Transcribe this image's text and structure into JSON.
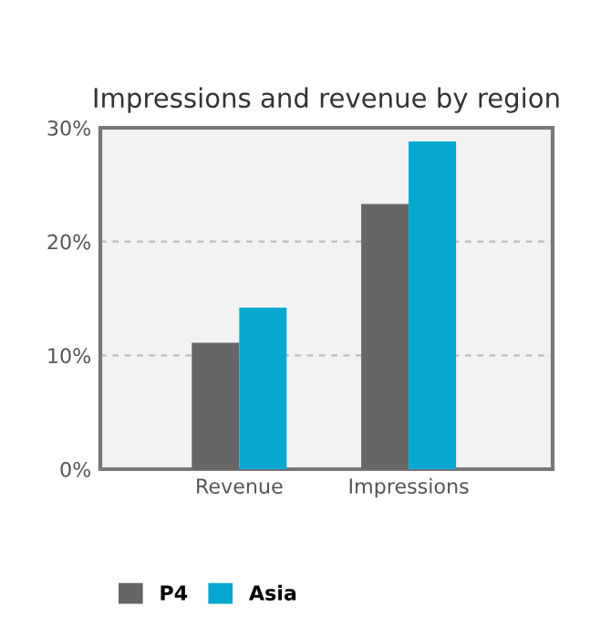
{
  "chart_data": {
    "type": "bar",
    "title": "Impressions and revenue by region",
    "categories": [
      "Revenue",
      "Impressions"
    ],
    "series": [
      {
        "name": "P4",
        "color": "#666666",
        "values": [
          11.1,
          23.3
        ]
      },
      {
        "name": "Asia",
        "color": "#06a7cf",
        "values": [
          14.2,
          28.8
        ]
      }
    ],
    "ylim": [
      0,
      30
    ],
    "yticks": [
      {
        "value": 0,
        "label": "0%"
      },
      {
        "value": 10,
        "label": "10%"
      },
      {
        "value": 20,
        "label": "20%"
      },
      {
        "value": 30,
        "label": "30%"
      }
    ],
    "grid": "y",
    "legend": "bottom left"
  }
}
